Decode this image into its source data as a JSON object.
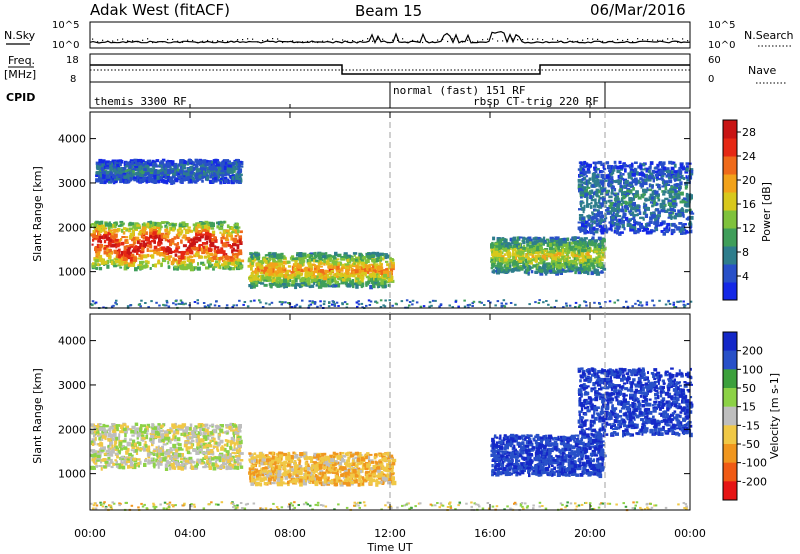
{
  "header": {
    "station": "Adak West (fitACF)",
    "beam": "Beam 15",
    "date": "06/Mar/2016"
  },
  "noise_panel": {
    "left_label": "N.Sky",
    "right_label": "N.Search",
    "left_ticks": [
      "10^5",
      "10^0"
    ],
    "right_ticks": [
      "10^5",
      "10^0"
    ]
  },
  "freq_panel": {
    "left_label_line1": "Freq.",
    "left_label_line2": "[MHz]",
    "right_label": "Nave",
    "left_ticks": [
      "18",
      "8"
    ],
    "right_ticks": [
      "60",
      "0"
    ]
  },
  "cpid_panel": {
    "label": "CPID",
    "modes": [
      {
        "name": "themis 3300 RF",
        "start": 0,
        "end": 12
      },
      {
        "name": "normal (fast) 151 RF",
        "start": 12,
        "end": 20.6
      },
      {
        "name": "rbsp CT-trig 220 RF",
        "start": 12,
        "end": 20.6
      }
    ]
  },
  "x_axis": {
    "label": "Time UT",
    "ticks": [
      "00:00",
      "04:00",
      "08:00",
      "12:00",
      "16:00",
      "20:00",
      "00:00"
    ],
    "range_hours": [
      0,
      24
    ]
  },
  "y_axis": {
    "label": "Slant Range [km]",
    "ticks": [
      "1000",
      "2000",
      "3000",
      "4000"
    ],
    "range_km": [
      180,
      4600
    ]
  },
  "power_colorbar": {
    "label": "Power [dB]",
    "ticks": [
      "4",
      "8",
      "12",
      "16",
      "20",
      "24",
      "28"
    ],
    "range": [
      0,
      30
    ]
  },
  "velocity_colorbar": {
    "label": "Velocity [m s-1]",
    "ticks": [
      "200",
      "100",
      "50",
      "15",
      "-15",
      "-50",
      "-100",
      "-200"
    ]
  },
  "colors": {
    "power": [
      "#1428e6",
      "#2850c8",
      "#2e7d8c",
      "#3f9e5a",
      "#7fc23c",
      "#d8c81c",
      "#f2a21a",
      "#ef6a1a",
      "#e62814",
      "#c81414"
    ],
    "velocity": [
      "#e61414",
      "#f05a14",
      "#f0961e",
      "#f0c846",
      "#bebebe",
      "#8cd246",
      "#3ca03c",
      "#2850c8",
      "#1428c8"
    ]
  },
  "chart_data": {
    "type": "heatmap",
    "panels": [
      {
        "name": "Power",
        "regions": [
          {
            "t0": 0,
            "t1": 6,
            "r0": 1100,
            "r1": 2150,
            "value": 24
          },
          {
            "t0": 6.3,
            "t1": 12.1,
            "r0": 700,
            "r1": 1450,
            "value": 18
          },
          {
            "t0": 16,
            "t1": 20.5,
            "r0": 1000,
            "r1": 1800,
            "value": 14
          },
          {
            "t0": 0.2,
            "t1": 6,
            "r0": 3050,
            "r1": 3550,
            "value": 6
          },
          {
            "t0": 19.5,
            "t1": 24,
            "r0": 1900,
            "r1": 3500,
            "value": 7
          }
        ]
      },
      {
        "name": "Velocity",
        "regions": [
          {
            "t0": 0,
            "t1": 6,
            "r0": 1150,
            "r1": 2150,
            "value": 0
          },
          {
            "t0": 6.3,
            "t1": 12.1,
            "r0": 800,
            "r1": 1500,
            "value": -40
          },
          {
            "t0": 16,
            "t1": 20.5,
            "r0": 1000,
            "r1": 1900,
            "value": 180
          },
          {
            "t0": 19.5,
            "t1": 24,
            "r0": 1900,
            "r1": 3400,
            "value": 200
          }
        ]
      }
    ]
  }
}
